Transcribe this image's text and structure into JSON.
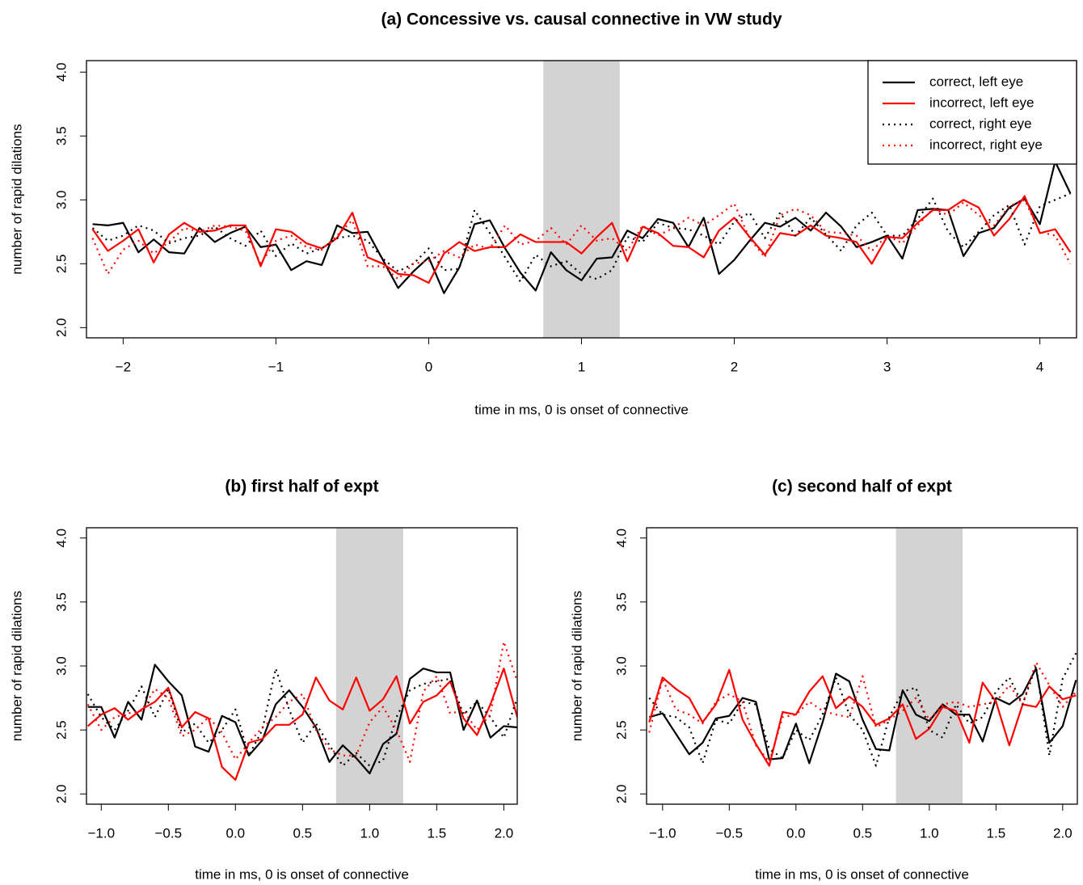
{
  "chart_data": [
    {
      "type": "line",
      "title": "(a) Concessive vs. causal connective in VW study",
      "xlabel": "time in ms, 0 is onset of connective",
      "ylabel": "number of rapid dilations",
      "xlim": [
        -2.24,
        4.24
      ],
      "ylim": [
        1.92,
        4.09
      ],
      "xticks": [
        {
          "value": -2,
          "label": "−2"
        },
        {
          "value": -1,
          "label": "−1"
        },
        0,
        1,
        2,
        3,
        4
      ],
      "yticks": [
        {
          "value": 2,
          "label": "2.0"
        },
        2.5,
        {
          "value": 3,
          "label": "3.0"
        },
        3.5,
        {
          "value": 4,
          "label": "4.0"
        }
      ],
      "highlight_x": [
        0.75,
        1.25
      ],
      "legend": "topright",
      "x": [
        -2.2,
        -2.1,
        -2.0,
        -1.9,
        -1.8,
        -1.7,
        -1.6,
        -1.5,
        -1.4,
        -1.3,
        -1.2,
        -1.1,
        -1.0,
        -0.9,
        -0.8,
        -0.7,
        -0.6,
        -0.5,
        -0.4,
        -0.3,
        -0.2,
        -0.1,
        0.0,
        0.1,
        0.2,
        0.3,
        0.4,
        0.5,
        0.6,
        0.7,
        0.8,
        0.9,
        1.0,
        1.1,
        1.2,
        1.3,
        1.4,
        1.5,
        1.6,
        1.7,
        1.8,
        1.9,
        2.0,
        2.1,
        2.2,
        2.3,
        2.4,
        2.5,
        2.6,
        2.7,
        2.8,
        2.9,
        3.0,
        3.1,
        3.2,
        3.3,
        3.4,
        3.5,
        3.6,
        3.7,
        3.8,
        3.9,
        4.0,
        4.1,
        4.2
      ],
      "series": [
        {
          "name": "correct, left eye",
          "color": "#000000",
          "dash": "solid",
          "values": [
            2.81,
            2.8,
            2.82,
            2.59,
            2.69,
            2.59,
            2.58,
            2.78,
            2.67,
            2.74,
            2.79,
            2.63,
            2.65,
            2.45,
            2.52,
            2.49,
            2.8,
            2.74,
            2.75,
            2.53,
            2.31,
            2.44,
            2.55,
            2.27,
            2.47,
            2.81,
            2.84,
            2.62,
            2.43,
            2.29,
            2.59,
            2.45,
            2.37,
            2.54,
            2.55,
            2.76,
            2.7,
            2.85,
            2.82,
            2.63,
            2.86,
            2.42,
            2.53,
            2.68,
            2.82,
            2.79,
            2.86,
            2.76,
            2.9,
            2.79,
            2.63,
            2.67,
            2.72,
            2.54,
            2.92,
            2.93,
            2.92,
            2.56,
            2.74,
            2.78,
            2.94,
            3.01,
            2.81,
            3.3,
            3.05
          ]
        },
        {
          "name": "incorrect, left eye",
          "color": "#ff0000",
          "dash": "solid",
          "values": [
            2.77,
            2.6,
            2.68,
            2.77,
            2.51,
            2.73,
            2.82,
            2.75,
            2.76,
            2.8,
            2.8,
            2.48,
            2.77,
            2.75,
            2.66,
            2.62,
            2.7,
            2.9,
            2.55,
            2.5,
            2.42,
            2.41,
            2.35,
            2.58,
            2.67,
            2.6,
            2.63,
            2.63,
            2.73,
            2.67,
            2.67,
            2.67,
            2.58,
            2.71,
            2.82,
            2.52,
            2.79,
            2.74,
            2.64,
            2.63,
            2.55,
            2.76,
            2.86,
            2.71,
            2.57,
            2.74,
            2.72,
            2.8,
            2.72,
            2.7,
            2.67,
            2.5,
            2.71,
            2.7,
            2.82,
            2.92,
            2.92,
            3.0,
            2.94,
            2.72,
            2.85,
            3.03,
            2.74,
            2.77,
            2.59
          ]
        },
        {
          "name": "correct, right eye",
          "color": "#000000",
          "dash": "dotted",
          "values": [
            2.78,
            2.68,
            2.72,
            2.8,
            2.76,
            2.66,
            2.7,
            2.72,
            2.79,
            2.7,
            2.64,
            2.76,
            2.56,
            2.66,
            2.58,
            2.62,
            2.7,
            2.72,
            2.68,
            2.54,
            2.44,
            2.5,
            2.62,
            2.45,
            2.46,
            2.92,
            2.74,
            2.55,
            2.36,
            2.57,
            2.48,
            2.52,
            2.42,
            2.38,
            2.45,
            2.71,
            2.67,
            2.82,
            2.78,
            2.77,
            2.72,
            2.65,
            2.83,
            2.9,
            2.7,
            2.9,
            2.72,
            2.86,
            2.73,
            2.6,
            2.8,
            2.9,
            2.72,
            2.72,
            2.85,
            3.01,
            2.75,
            2.63,
            2.75,
            2.88,
            2.96,
            2.65,
            2.95,
            3.0,
            3.05
          ]
        },
        {
          "name": "incorrect, right eye",
          "color": "#ff0000",
          "dash": "dotted",
          "values": [
            2.7,
            2.42,
            2.61,
            2.68,
            2.58,
            2.67,
            2.78,
            2.75,
            2.8,
            2.79,
            2.76,
            2.5,
            2.68,
            2.72,
            2.63,
            2.61,
            2.72,
            2.84,
            2.48,
            2.48,
            2.38,
            2.5,
            2.52,
            2.6,
            2.55,
            2.65,
            2.62,
            2.8,
            2.65,
            2.68,
            2.78,
            2.65,
            2.8,
            2.68,
            2.7,
            2.6,
            2.8,
            2.72,
            2.78,
            2.86,
            2.8,
            2.88,
            2.97,
            2.7,
            2.55,
            2.88,
            2.93,
            2.88,
            2.75,
            2.74,
            2.72,
            2.6,
            2.72,
            2.66,
            2.8,
            2.93,
            2.88,
            2.98,
            2.88,
            2.8,
            2.95,
            3.0,
            2.75,
            2.72,
            2.5
          ]
        }
      ]
    },
    {
      "type": "line",
      "title": "(b) first half of expt",
      "xlabel": "time in ms, 0 is onset of connective",
      "ylabel": "number of rapid dilations",
      "xlim": [
        -1.11,
        2.1
      ],
      "ylim": [
        1.92,
        4.08
      ],
      "xticks": [
        {
          "value": -1,
          "label": "−1.0"
        },
        {
          "value": -0.5,
          "label": "−0.5"
        },
        {
          "value": 0,
          "label": "0.0"
        },
        0.5,
        {
          "value": 1,
          "label": "1.0"
        },
        1.5,
        {
          "value": 2,
          "label": "2.0"
        }
      ],
      "yticks": [
        {
          "value": 2,
          "label": "2.0"
        },
        2.5,
        {
          "value": 3,
          "label": "3.0"
        },
        3.5,
        {
          "value": 4,
          "label": "4.0"
        }
      ],
      "highlight_x": [
        0.75,
        1.25
      ],
      "x": [
        -1.1,
        -1.0,
        -0.9,
        -0.8,
        -0.7,
        -0.6,
        -0.5,
        -0.4,
        -0.3,
        -0.2,
        -0.1,
        0.0,
        0.1,
        0.2,
        0.3,
        0.4,
        0.5,
        0.6,
        0.7,
        0.8,
        0.9,
        1.0,
        1.1,
        1.2,
        1.3,
        1.4,
        1.5,
        1.6,
        1.7,
        1.8,
        1.9,
        2.0,
        2.1
      ],
      "series": [
        {
          "color": "#000000",
          "dash": "solid",
          "values": [
            2.68,
            2.68,
            2.44,
            2.72,
            2.58,
            3.01,
            2.88,
            2.77,
            2.37,
            2.33,
            2.61,
            2.56,
            2.3,
            2.42,
            2.7,
            2.81,
            2.68,
            2.52,
            2.25,
            2.38,
            2.28,
            2.16,
            2.39,
            2.47,
            2.9,
            2.98,
            2.95,
            2.95,
            2.5,
            2.73,
            2.44,
            2.53,
            2.52
          ]
        },
        {
          "color": "#ff0000",
          "dash": "solid",
          "values": [
            2.53,
            2.62,
            2.67,
            2.58,
            2.66,
            2.72,
            2.83,
            2.52,
            2.64,
            2.59,
            2.21,
            2.11,
            2.4,
            2.43,
            2.54,
            2.54,
            2.62,
            2.91,
            2.73,
            2.66,
            2.91,
            2.65,
            2.74,
            2.92,
            2.55,
            2.72,
            2.77,
            2.88,
            2.59,
            2.46,
            2.7,
            2.98,
            2.6
          ]
        },
        {
          "color": "#000000",
          "dash": "dotted",
          "values": [
            2.78,
            2.6,
            2.5,
            2.65,
            2.84,
            2.6,
            2.82,
            2.48,
            2.55,
            2.4,
            2.5,
            2.66,
            2.3,
            2.5,
            2.98,
            2.66,
            2.4,
            2.55,
            2.38,
            2.22,
            2.32,
            2.22,
            2.26,
            2.6,
            2.81,
            2.86,
            2.88,
            2.9,
            2.62,
            2.72,
            2.6,
            2.44,
            2.75
          ]
        },
        {
          "color": "#ff0000",
          "dash": "dotted",
          "values": [
            2.7,
            2.5,
            2.6,
            2.63,
            2.65,
            2.82,
            2.75,
            2.45,
            2.5,
            2.6,
            2.48,
            2.27,
            2.4,
            2.52,
            2.6,
            2.72,
            2.78,
            2.5,
            2.35,
            2.3,
            2.3,
            2.56,
            2.68,
            2.5,
            2.25,
            2.8,
            2.92,
            2.63,
            2.65,
            2.5,
            2.62,
            3.19,
            2.88
          ]
        }
      ]
    },
    {
      "type": "line",
      "title": "(c) second half of expt",
      "xlabel": "time in ms, 0 is onset of connective",
      "ylabel": "number of rapid dilations",
      "xlim": [
        -1.12,
        2.11
      ],
      "ylim": [
        1.92,
        4.08
      ],
      "xticks": [
        {
          "value": -1,
          "label": "−1.0"
        },
        {
          "value": -0.5,
          "label": "−0.5"
        },
        {
          "value": 0,
          "label": "0.0"
        },
        0.5,
        {
          "value": 1,
          "label": "1.0"
        },
        1.5,
        {
          "value": 2,
          "label": "2.0"
        }
      ],
      "yticks": [
        {
          "value": 2,
          "label": "2.0"
        },
        2.5,
        {
          "value": 3,
          "label": "3.0"
        },
        3.5,
        {
          "value": 4,
          "label": "4.0"
        }
      ],
      "highlight_x": [
        0.75,
        1.25
      ],
      "x": [
        -1.1,
        -1.0,
        -0.9,
        -0.8,
        -0.7,
        -0.6,
        -0.5,
        -0.4,
        -0.3,
        -0.2,
        -0.1,
        0.0,
        0.1,
        0.2,
        0.3,
        0.4,
        0.5,
        0.6,
        0.7,
        0.8,
        0.9,
        1.0,
        1.1,
        1.2,
        1.3,
        1.4,
        1.5,
        1.6,
        1.7,
        1.8,
        1.9,
        2.0,
        2.1
      ],
      "series": [
        {
          "color": "#000000",
          "dash": "solid",
          "values": [
            2.6,
            2.63,
            2.47,
            2.31,
            2.4,
            2.59,
            2.61,
            2.75,
            2.72,
            2.27,
            2.28,
            2.55,
            2.24,
            2.56,
            2.94,
            2.88,
            2.58,
            2.35,
            2.34,
            2.81,
            2.62,
            2.57,
            2.7,
            2.62,
            2.62,
            2.41,
            2.75,
            2.7,
            2.78,
            2.98,
            2.4,
            2.53,
            2.89
          ]
        },
        {
          "color": "#ff0000",
          "dash": "solid",
          "values": [
            2.56,
            2.91,
            2.82,
            2.75,
            2.56,
            2.7,
            2.97,
            2.58,
            2.39,
            2.22,
            2.64,
            2.62,
            2.8,
            2.92,
            2.67,
            2.76,
            2.68,
            2.54,
            2.59,
            2.7,
            2.43,
            2.51,
            2.68,
            2.65,
            2.4,
            2.87,
            2.72,
            2.38,
            2.7,
            2.68,
            2.84,
            2.74,
            2.77
          ]
        },
        {
          "color": "#000000",
          "dash": "dotted",
          "values": [
            2.75,
            2.62,
            2.6,
            2.52,
            2.24,
            2.58,
            2.55,
            2.72,
            2.7,
            2.35,
            2.28,
            2.5,
            2.42,
            2.62,
            2.91,
            2.62,
            2.5,
            2.22,
            2.6,
            2.8,
            2.83,
            2.5,
            2.44,
            2.7,
            2.55,
            2.6,
            2.8,
            2.91,
            2.7,
            3.0,
            2.3,
            2.9,
            3.1
          ]
        },
        {
          "color": "#ff0000",
          "dash": "dotted",
          "values": [
            2.48,
            2.9,
            2.66,
            2.62,
            2.55,
            2.72,
            2.78,
            2.72,
            2.38,
            2.25,
            2.6,
            2.62,
            2.72,
            2.65,
            2.62,
            2.6,
            2.92,
            2.52,
            2.58,
            2.65,
            2.75,
            2.58,
            2.7,
            2.72,
            2.68,
            2.7,
            2.72,
            2.85,
            2.7,
            3.03,
            2.85,
            2.68,
            2.8
          ]
        }
      ]
    }
  ]
}
